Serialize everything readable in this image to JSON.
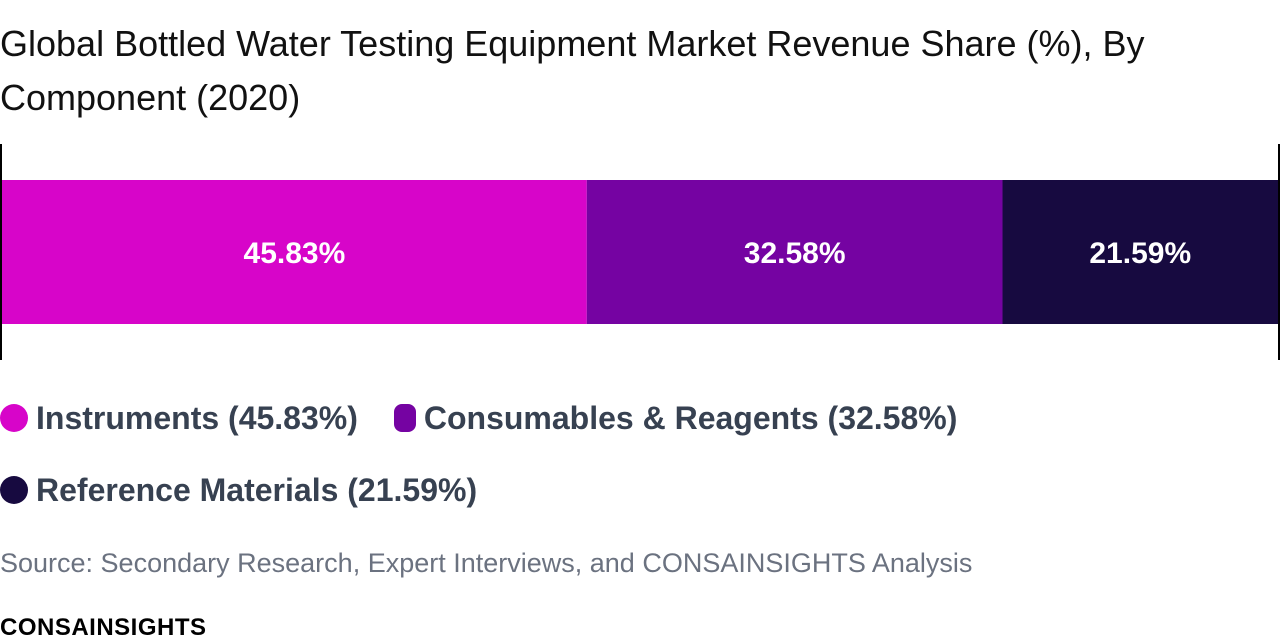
{
  "title": "Global Bottled Water Testing Equipment Market Revenue Share (%), By Component (2020)",
  "chart_data": {
    "type": "bar",
    "orientation": "horizontal-stacked-100",
    "categories": [
      "Instruments",
      "Consumables & Reagents",
      "Reference Materials"
    ],
    "values": [
      45.83,
      32.58,
      21.59
    ],
    "data_labels": [
      "45.83%",
      "32.58%",
      "21.59%"
    ],
    "colors": [
      "#d705c9",
      "#7503a2",
      "#170a40"
    ],
    "xlim": [
      0,
      100
    ],
    "legend_position": "bottom"
  },
  "legend": {
    "items": [
      {
        "label": "Instruments (45.83%)",
        "color": "#d705c9"
      },
      {
        "label": "Consumables & Reagents (32.58%)",
        "color": "#7503a2"
      },
      {
        "label": "Reference Materials (21.59%)",
        "color": "#170a40"
      }
    ]
  },
  "source": "Source: Secondary Research, Expert Interviews, and CONSAINSIGHTS Analysis",
  "brand": "CONSAINSIGHTS"
}
